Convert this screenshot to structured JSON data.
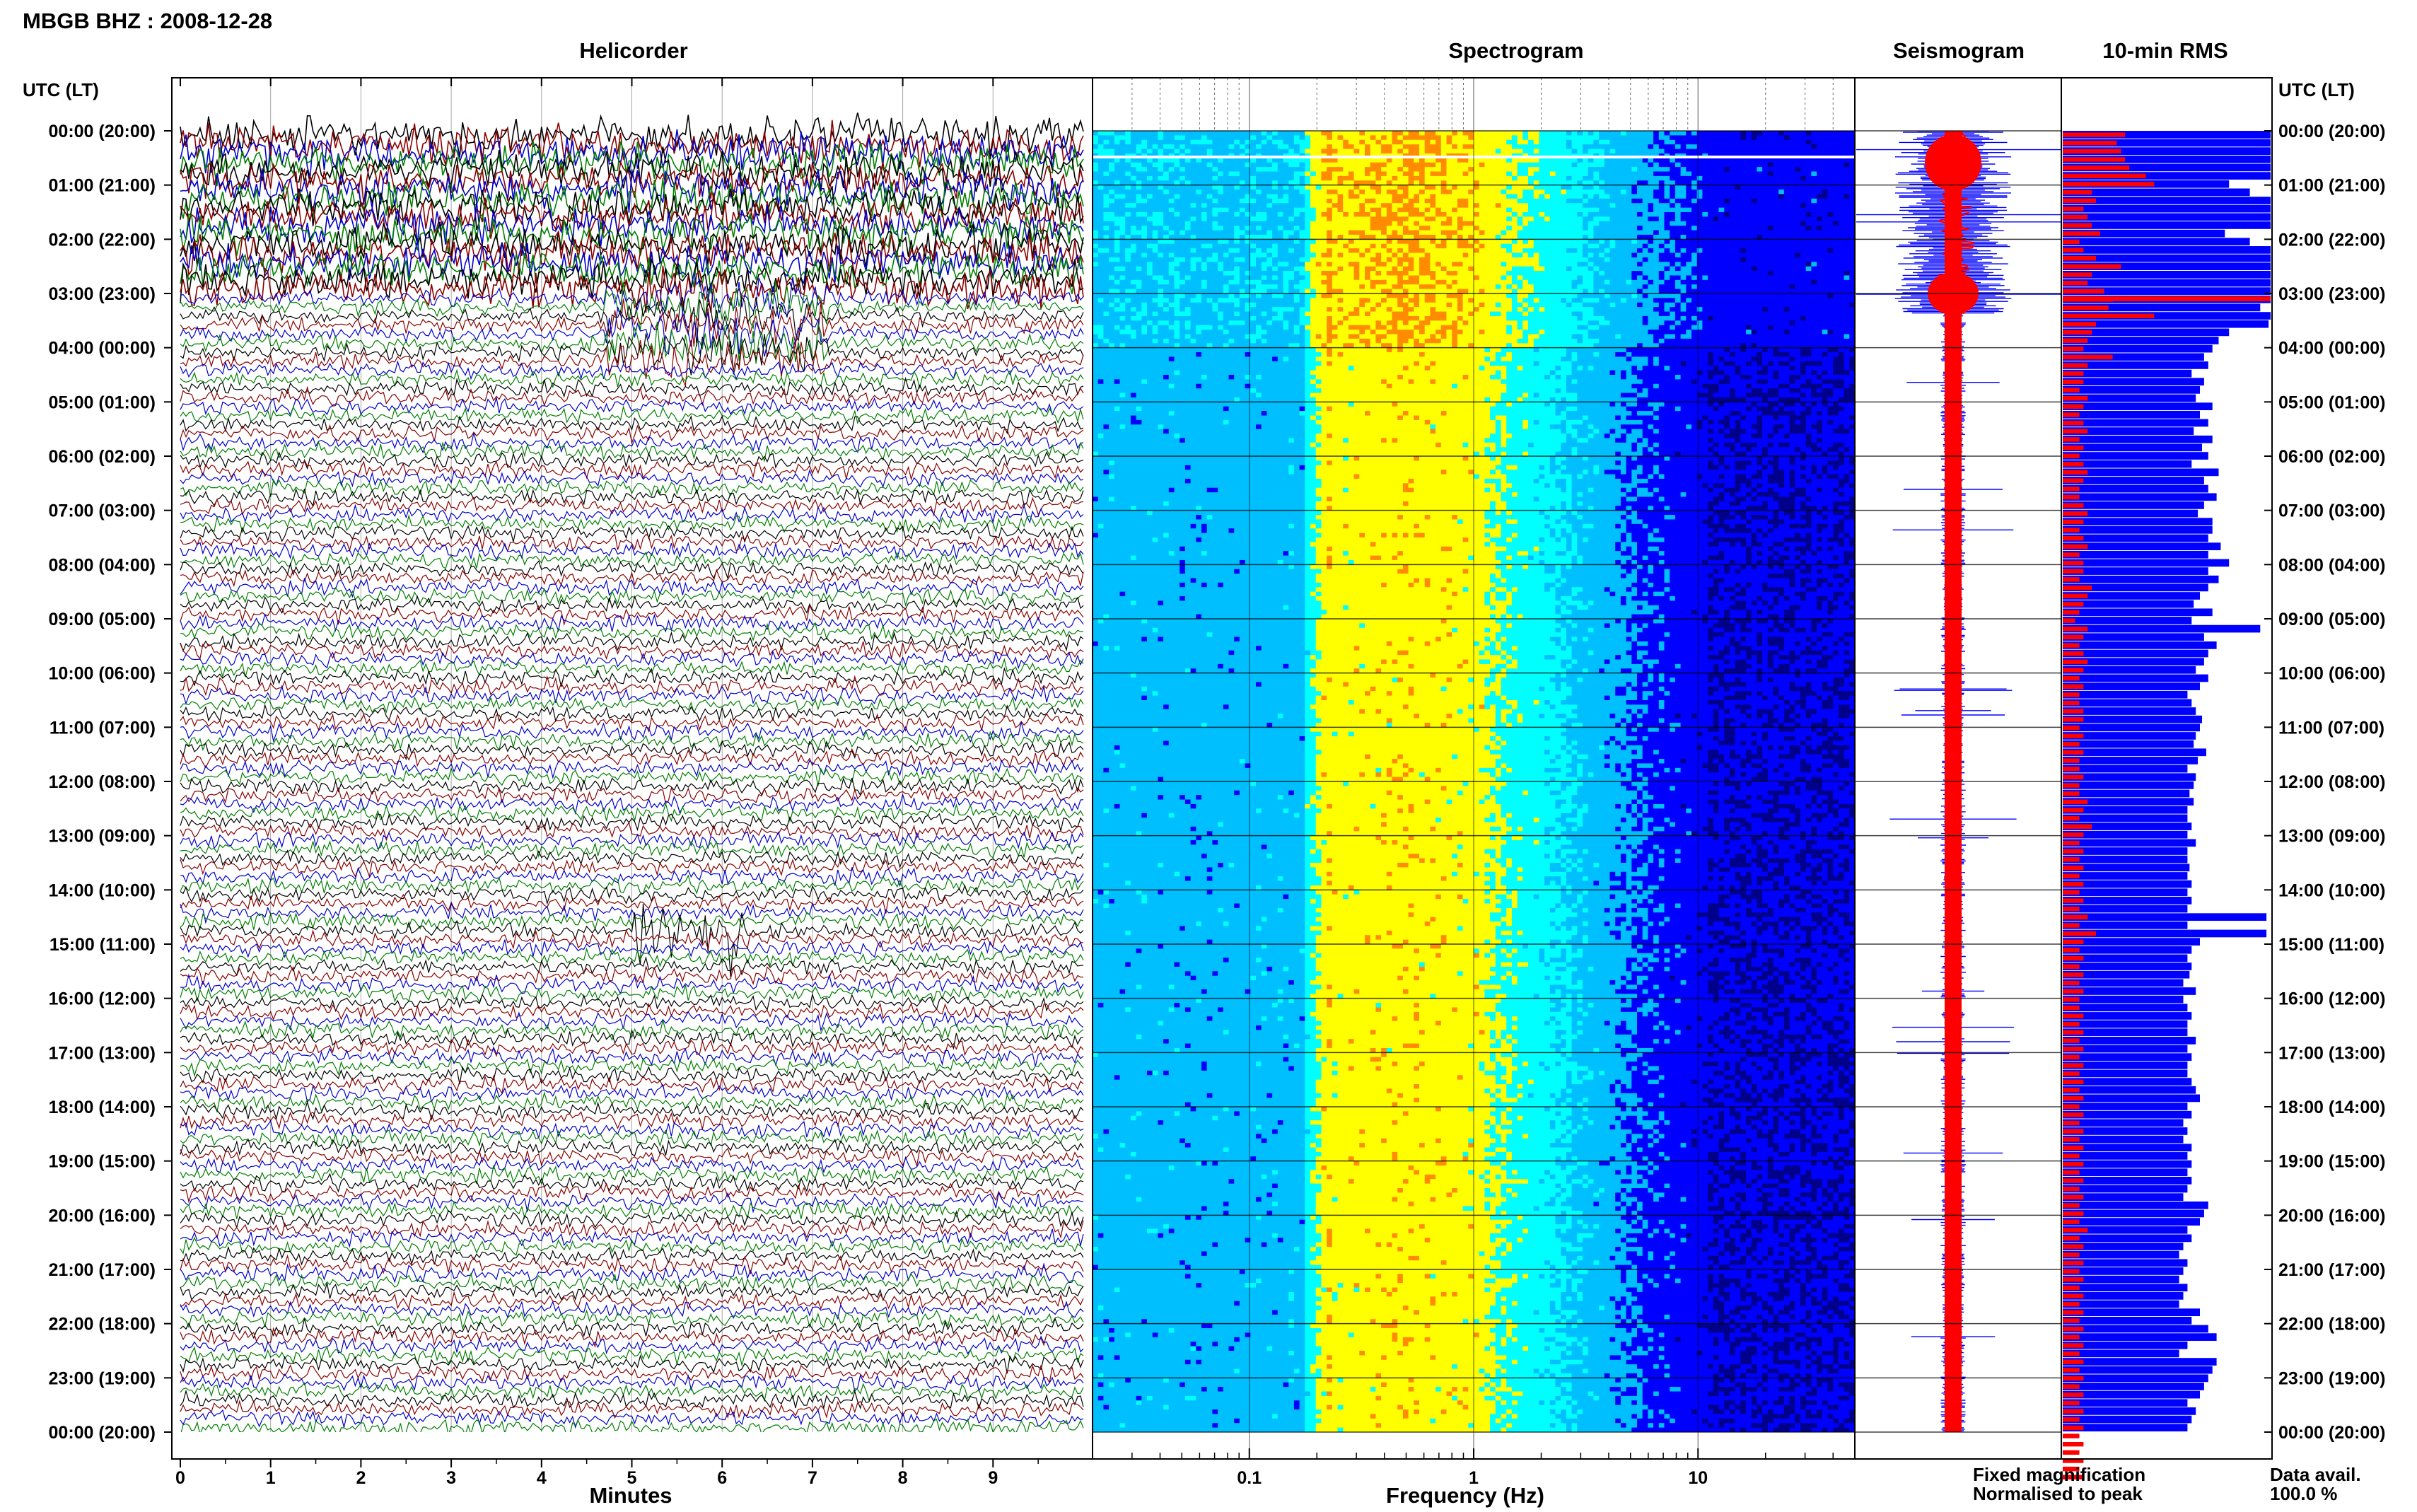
{
  "station_title": "MBGB BHZ : 2008-12-28",
  "left_axis_header": "UTC (LT)",
  "right_axis_header": "UTC (LT)",
  "panel_titles": {
    "helicorder": "Helicorder",
    "spectrogram": "Spectrogram",
    "seismogram": "Seismogram",
    "rms": "10-min RMS"
  },
  "axis_labels": {
    "helicorder_x": "Minutes",
    "spectrogram_x": "Frequency (Hz)"
  },
  "legend": {
    "fixed": "Fixed magnification",
    "normalised": "Normalised to peak",
    "fixed_color": "#0000ff",
    "normalised_color": "#ff0000"
  },
  "data_availability": {
    "label": "Data avail.",
    "value": "100.0 %"
  },
  "chart_data": [
    {
      "type": "line",
      "panel": "helicorder",
      "title": "Helicorder",
      "xlabel": "Minutes",
      "xlim": [
        0,
        10
      ],
      "x_ticks": [
        "0",
        "1",
        "2",
        "3",
        "4",
        "5",
        "6",
        "7",
        "8",
        "9"
      ],
      "trace_colors": [
        "#000000",
        "#8b0000",
        "#0000cc",
        "#008000"
      ],
      "time_labels": [
        "00:00 (20:00)",
        "01:00 (21:00)",
        "02:00 (22:00)",
        "03:00 (23:00)",
        "04:00 (00:00)",
        "05:00 (01:00)",
        "06:00 (02:00)",
        "07:00 (03:00)",
        "08:00 (04:00)",
        "09:00 (05:00)",
        "10:00 (06:00)",
        "11:00 (07:00)",
        "12:00 (08:00)",
        "13:00 (09:00)",
        "14:00 (10:00)",
        "15:00 (11:00)",
        "16:00 (12:00)",
        "17:00 (13:00)",
        "18:00 (14:00)",
        "19:00 (15:00)",
        "20:00 (16:00)",
        "21:00 (17:00)",
        "22:00 (18:00)",
        "23:00 (19:00)",
        "00:00 (20:00)"
      ]
    },
    {
      "type": "heatmap",
      "panel": "spectrogram",
      "title": "Spectrogram",
      "xlabel": "Frequency (Hz)",
      "x_scale": "log",
      "xlim": [
        0.02,
        50
      ],
      "x_ticks": [
        "0.1",
        "1",
        "10"
      ],
      "colors": [
        "#00008b",
        "#0000ff",
        "#00bfff",
        "#00ffff",
        "#ffff00",
        "#ff8c00",
        "#ff0000"
      ]
    },
    {
      "type": "line",
      "panel": "seismogram",
      "title": "Seismogram",
      "series": [
        {
          "name": "Fixed magnification",
          "color": "#0000ff"
        },
        {
          "name": "Normalised to peak",
          "color": "#ff0000"
        }
      ]
    },
    {
      "type": "bar",
      "panel": "rms",
      "title": "10-min RMS",
      "orientation": "horizontal",
      "xlim": [
        0,
        1
      ],
      "series": [
        {
          "name": "Fixed magnification",
          "color": "#0000ff",
          "values": [
            1.0,
            1.0,
            1.0,
            1.0,
            1.0,
            1.0,
            0.8,
            0.9,
            1.0,
            1.0,
            1.0,
            1.0,
            0.78,
            0.9,
            1.0,
            1.0,
            1.0,
            1.0,
            1.0,
            1.0,
            1.0,
            0.95,
            1.0,
            0.99,
            0.8,
            0.75,
            0.72,
            0.68,
            0.7,
            0.62,
            0.68,
            0.66,
            0.64,
            0.72,
            0.66,
            0.7,
            0.63,
            0.72,
            0.67,
            0.7,
            0.62,
            0.75,
            0.68,
            0.7,
            0.74,
            0.68,
            0.65,
            0.72,
            0.72,
            0.7,
            0.76,
            0.7,
            0.8,
            0.7,
            0.75,
            0.7,
            0.66,
            0.63,
            0.72,
            0.62,
            0.95,
            0.68,
            0.74,
            0.7,
            0.68,
            0.64,
            0.7,
            0.66,
            0.6,
            0.62,
            0.64,
            0.67,
            0.66,
            0.64,
            0.63,
            0.69,
            0.65,
            0.6,
            0.64,
            0.63,
            0.61,
            0.63,
            0.6,
            0.6,
            0.62,
            0.6,
            0.64,
            0.6,
            0.6,
            0.61,
            0.6,
            0.62,
            0.6,
            0.62,
            0.6,
            0.98,
            0.6,
            0.98,
            0.66,
            0.62,
            0.6,
            0.62,
            0.61,
            0.58,
            0.64,
            0.58,
            0.6,
            0.62,
            0.6,
            0.6,
            0.64,
            0.6,
            0.62,
            0.6,
            0.6,
            0.62,
            0.64,
            0.66,
            0.6,
            0.62,
            0.58,
            0.6,
            0.58,
            0.62,
            0.6,
            0.62,
            0.6,
            0.62,
            0.6,
            0.58,
            0.7,
            0.68,
            0.66,
            0.6,
            0.62,
            0.58,
            0.56,
            0.6,
            0.58,
            0.56,
            0.6,
            0.58,
            0.56,
            0.66,
            0.62,
            0.7,
            0.74,
            0.6,
            0.56,
            0.74,
            0.72,
            0.7,
            0.68,
            0.66,
            0.6,
            0.64,
            0.62,
            0.6
          ]
        },
        {
          "name": "Normalised to peak",
          "color": "#ff0000",
          "values": [
            0.3,
            0.26,
            0.28,
            0.3,
            0.32,
            0.4,
            0.44,
            0.14,
            0.16,
            0.1,
            0.12,
            0.14,
            0.18,
            0.08,
            0.1,
            0.16,
            0.28,
            0.14,
            0.12,
            0.2,
            0.24,
            0.22,
            0.44,
            0.16,
            0.14,
            0.12,
            0.1,
            0.24,
            0.12,
            0.1,
            0.1,
            0.08,
            0.12,
            0.1,
            0.08,
            0.1,
            0.12,
            0.08,
            0.1,
            0.08,
            0.1,
            0.12,
            0.1,
            0.08,
            0.08,
            0.1,
            0.12,
            0.1,
            0.08,
            0.1,
            0.12,
            0.08,
            0.1,
            0.1,
            0.08,
            0.14,
            0.12,
            0.1,
            0.08,
            0.06,
            0.12,
            0.1,
            0.08,
            0.1,
            0.12,
            0.1,
            0.08,
            0.1,
            0.08,
            0.08,
            0.1,
            0.1,
            0.08,
            0.1,
            0.08,
            0.1,
            0.08,
            0.08,
            0.1,
            0.08,
            0.08,
            0.12,
            0.1,
            0.08,
            0.14,
            0.1,
            0.08,
            0.1,
            0.08,
            0.1,
            0.08,
            0.1,
            0.08,
            0.1,
            0.08,
            0.12,
            0.08,
            0.16,
            0.1,
            0.08,
            0.1,
            0.08,
            0.1,
            0.08,
            0.1,
            0.08,
            0.08,
            0.1,
            0.08,
            0.1,
            0.08,
            0.1,
            0.08,
            0.1,
            0.08,
            0.1,
            0.08,
            0.1,
            0.08,
            0.1,
            0.08,
            0.1,
            0.08,
            0.1,
            0.08,
            0.1,
            0.08,
            0.1,
            0.08,
            0.1,
            0.08,
            0.1,
            0.08,
            0.12,
            0.08,
            0.1,
            0.08,
            0.1,
            0.08,
            0.1,
            0.08,
            0.1,
            0.08,
            0.1,
            0.08,
            0.1,
            0.08,
            0.1,
            0.08,
            0.1,
            0.08,
            0.1,
            0.08,
            0.1,
            0.08,
            0.1,
            0.08,
            0.1,
            0.08,
            0.1,
            0.08,
            0.1,
            0.08,
            0.1
          ]
        }
      ]
    }
  ]
}
